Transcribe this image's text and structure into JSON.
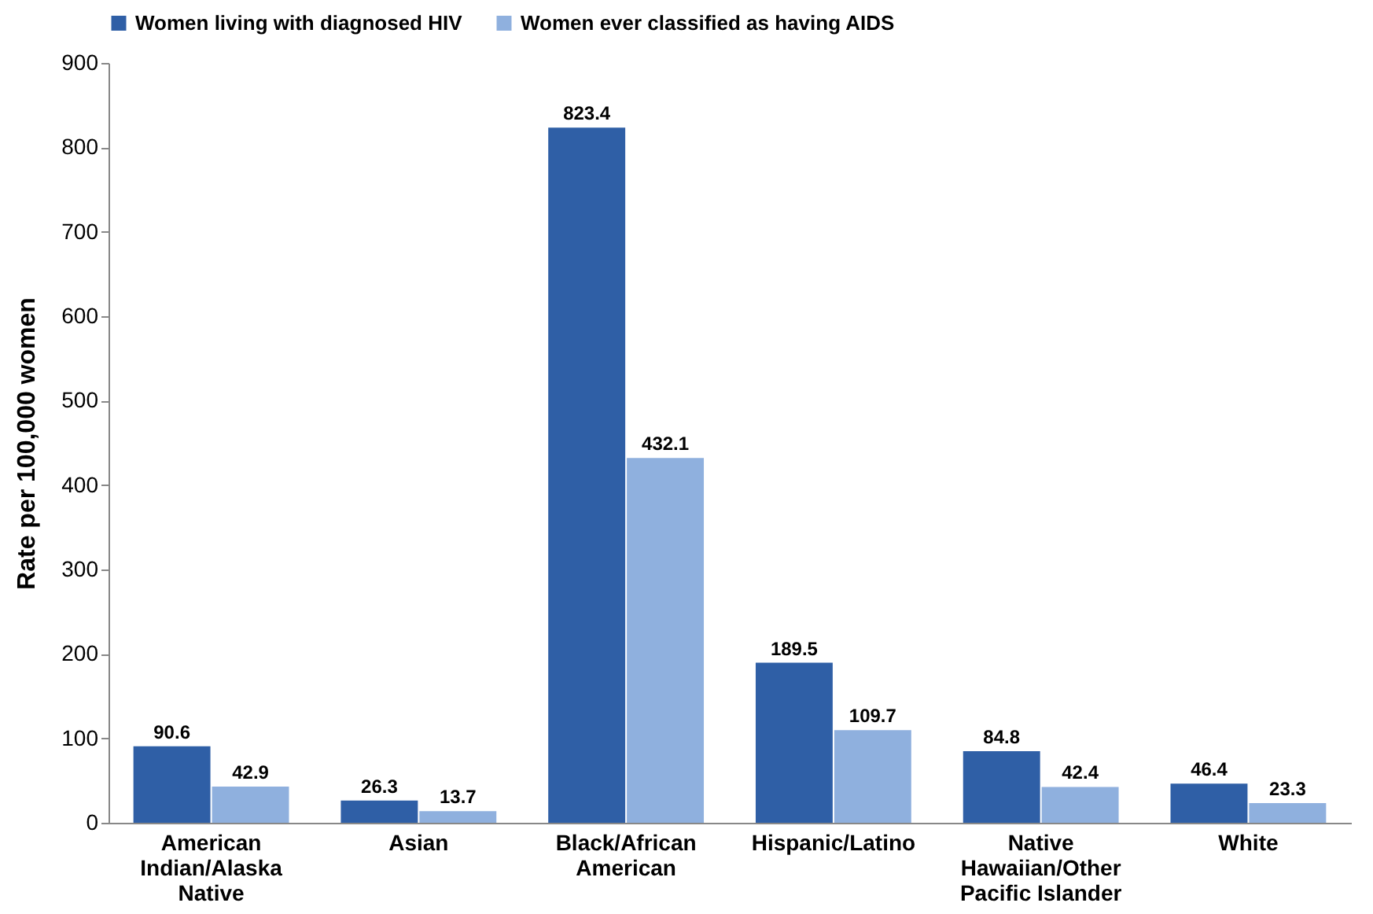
{
  "chart_data": {
    "type": "bar",
    "ylabel": "Rate per 100,000 women",
    "categories": [
      "American Indian/Alaska Native",
      "Asian",
      "Black/African American",
      "Hispanic/Latino",
      "Native Hawaiian/Other Pacific Islander",
      "White"
    ],
    "series": [
      {
        "name": "Women living with diagnosed HIV",
        "color": "#2f5fa6",
        "values": [
          90.6,
          26.3,
          823.4,
          189.5,
          84.8,
          46.4
        ]
      },
      {
        "name": "Women ever classified as having AIDS",
        "color": "#8fb0de",
        "values": [
          42.9,
          13.7,
          432.1,
          109.7,
          42.4,
          23.3
        ]
      }
    ],
    "ylim": [
      0,
      900
    ],
    "yticks": [
      0,
      100,
      200,
      300,
      400,
      500,
      600,
      700,
      800,
      900
    ],
    "grid": false,
    "legend": "top",
    "data_labels": true
  }
}
